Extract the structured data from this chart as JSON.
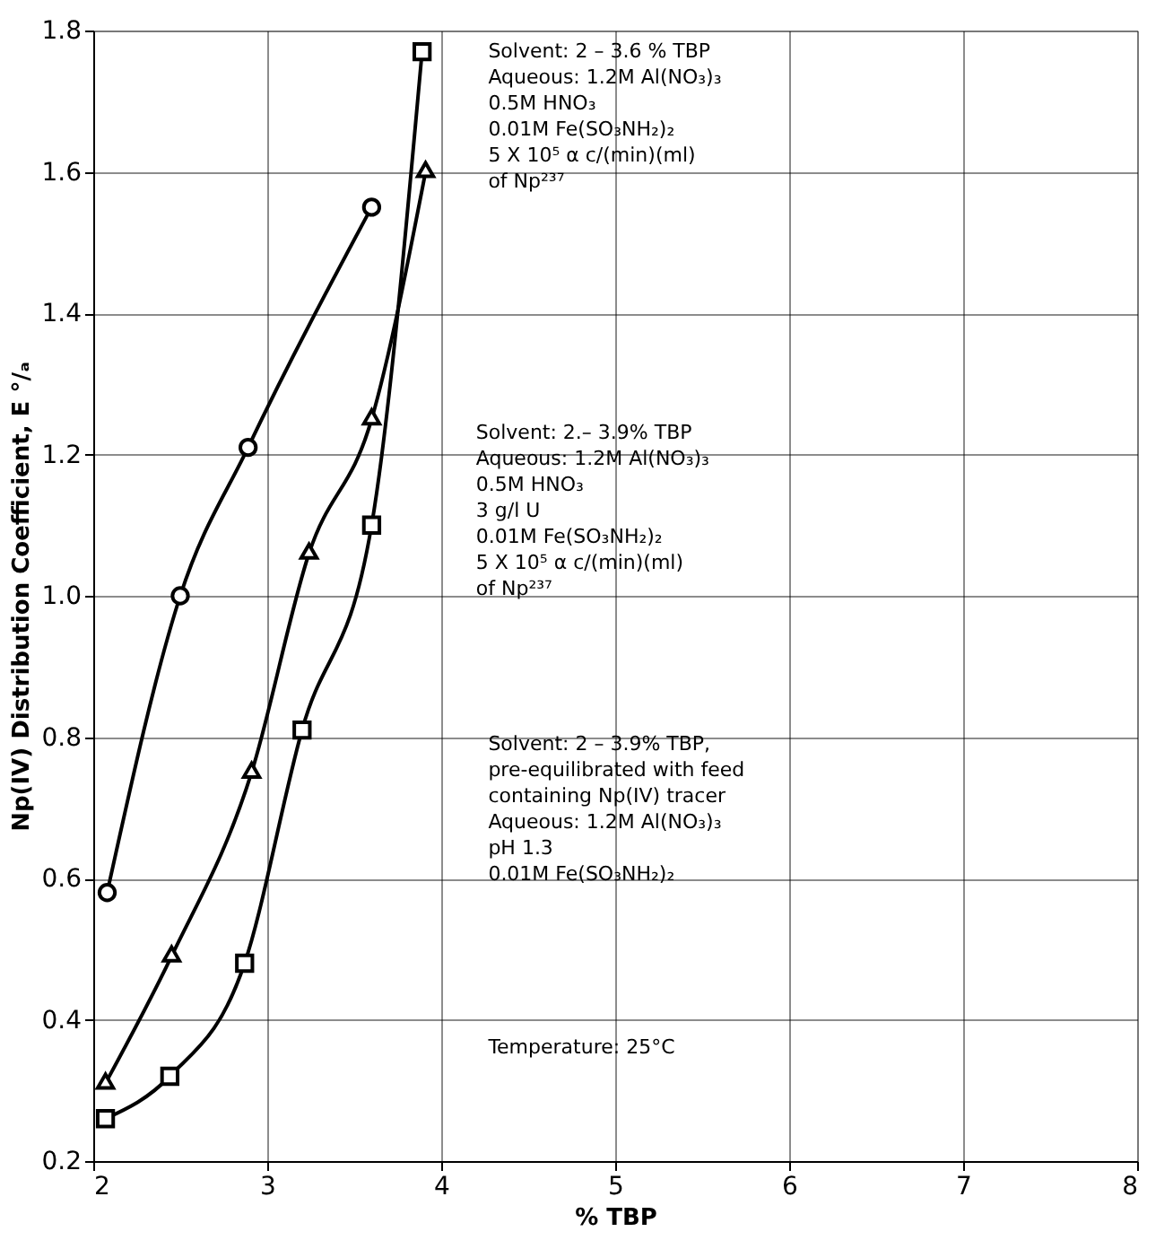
{
  "chart_data": {
    "type": "line",
    "xlabel": "% TBP",
    "ylabel": "Np(IV) Distribution Coefficient, E °/ₐ",
    "xlim": [
      2,
      8
    ],
    "xticks": [
      2,
      3,
      4,
      5,
      6,
      7,
      8
    ],
    "ylim": [
      0.2,
      1.8
    ],
    "yticks": [
      0.2,
      0.4,
      0.6,
      0.8,
      {
        "value": 1,
        "label": "1.0"
      },
      1.2,
      1.4,
      1.6,
      1.8
    ],
    "grid": true,
    "line_style": "solid",
    "series": [
      {
        "color": "#000000",
        "marker": "circle",
        "x": [
          2.08,
          2.5,
          2.89,
          3.6
        ],
        "values": [
          0.58,
          1.0,
          1.21,
          1.55
        ]
      },
      {
        "color": "#000000",
        "marker": "triangle",
        "x": [
          2.07,
          2.45,
          2.91,
          3.24,
          3.6,
          3.91
        ],
        "values": [
          0.31,
          0.49,
          0.75,
          1.06,
          1.25,
          1.6
        ]
      },
      {
        "color": "#000000",
        "marker": "square",
        "x": [
          2.07,
          2.44,
          2.87,
          3.2,
          3.6,
          3.89
        ],
        "values": [
          0.26,
          0.32,
          0.48,
          0.81,
          1.1,
          1.77
        ]
      }
    ],
    "annotations": [
      "Solvent: 2 – 3.6 % TBP\nAqueous: 1.2M Al(NO₃)₃\n0.5M HNO₃\n0.01M Fe(SO₃NH₂)₂\n5 X 10⁵ α c/(min)(ml)\nof Np²³⁷",
      "Solvent: 2.– 3.9% TBP\nAqueous: 1.2M Al(NO₃)₃\n0.5M HNO₃\n3 g/l U\n0.01M Fe(SO₃NH₂)₂\n5 X 10⁵ α c/(min)(ml)\nof Np²³⁷",
      "Solvent: 2 – 3.9% TBP,\npre-equilibrated with feed\ncontaining Np(IV) tracer\nAqueous: 1.2M Al(NO₃)₃\npH 1.3\n0.01M Fe(SO₃NH₂)₂",
      "Temperature: 25°C"
    ]
  }
}
